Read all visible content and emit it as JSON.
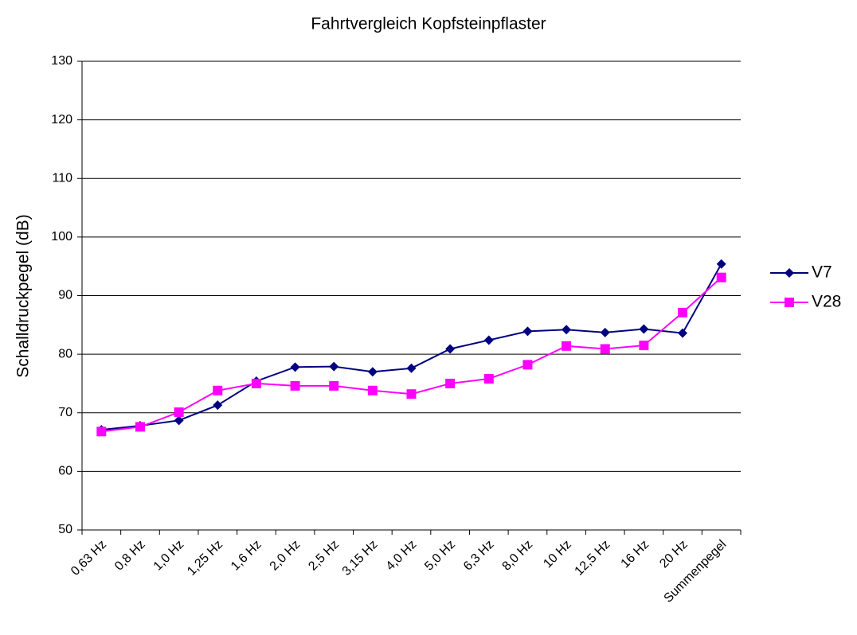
{
  "chart_data": {
    "type": "line",
    "title": "Fahrtvergleich Kopfsteinpflaster",
    "y_label": "Schalldruckpegel (dB)",
    "categories": [
      "0,63 Hz",
      "0,8 Hz",
      "1,0 Hz",
      "1,25 Hz",
      "1,6 Hz",
      "2,0 Hz",
      "2,5 Hz",
      "3,15 Hz",
      "4,0 Hz",
      "5,0 Hz",
      "6,3 Hz",
      "8,0 Hz",
      "10 Hz",
      "12,5 Hz",
      "16 Hz",
      "20 Hz",
      "Summenpegel"
    ],
    "series": [
      {
        "name": "V7",
        "color": "#000080",
        "marker": "diamond",
        "values": [
          67.1,
          67.8,
          68.7,
          71.3,
          75.4,
          77.8,
          77.9,
          77.0,
          77.6,
          80.9,
          82.4,
          83.9,
          84.2,
          83.7,
          84.3,
          83.6,
          95.4
        ]
      },
      {
        "name": "V28",
        "color": "#ff00ff",
        "marker": "square",
        "values": [
          66.8,
          67.6,
          70.1,
          73.8,
          75.0,
          74.6,
          74.6,
          73.8,
          73.2,
          75.0,
          75.8,
          78.2,
          81.4,
          80.9,
          81.5,
          87.1,
          93.1
        ]
      }
    ],
    "ylim": [
      50,
      130
    ],
    "yticks": [
      50,
      60,
      70,
      80,
      90,
      100,
      110,
      120,
      130
    ],
    "grid": true,
    "legend": "right"
  }
}
